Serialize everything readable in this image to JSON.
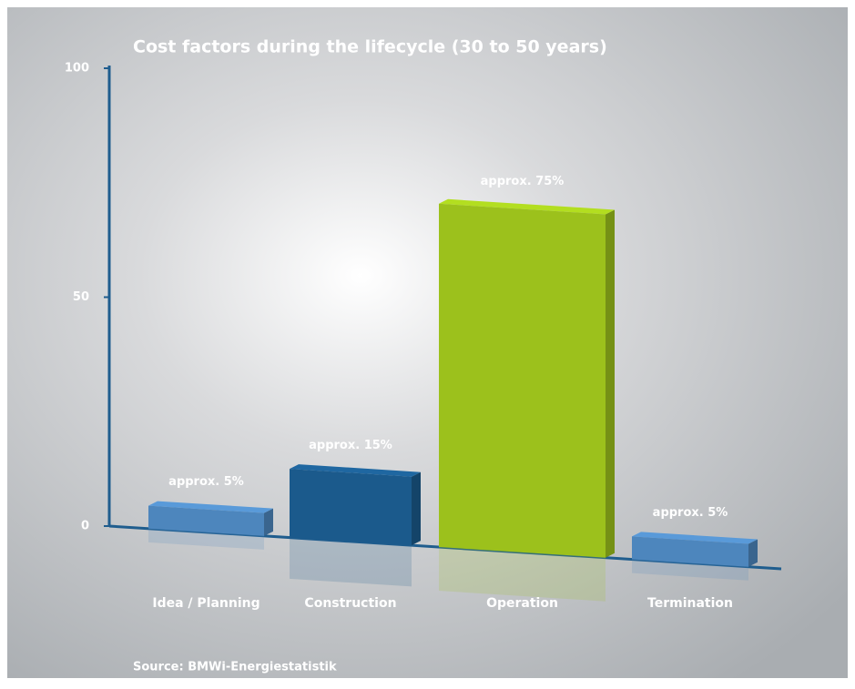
{
  "chart_data": {
    "type": "bar3d",
    "title": "Cost factors during the lifecycle (30 to 50 years)",
    "categories": [
      "Idea / Planning",
      "Construction",
      "Operation",
      "Termination"
    ],
    "values": [
      5,
      15,
      75,
      5
    ],
    "value_labels": [
      "approx. 5%",
      "approx. 15%",
      "approx. 75%",
      "approx. 5%"
    ],
    "colors": [
      "#4d86bd",
      "#1b5a8c",
      "#9cc11c",
      "#4d86bd"
    ],
    "ylim": [
      0,
      100
    ],
    "yticks": [
      0,
      50,
      100
    ],
    "source": "Source: BMWi-Energiestatistik"
  }
}
